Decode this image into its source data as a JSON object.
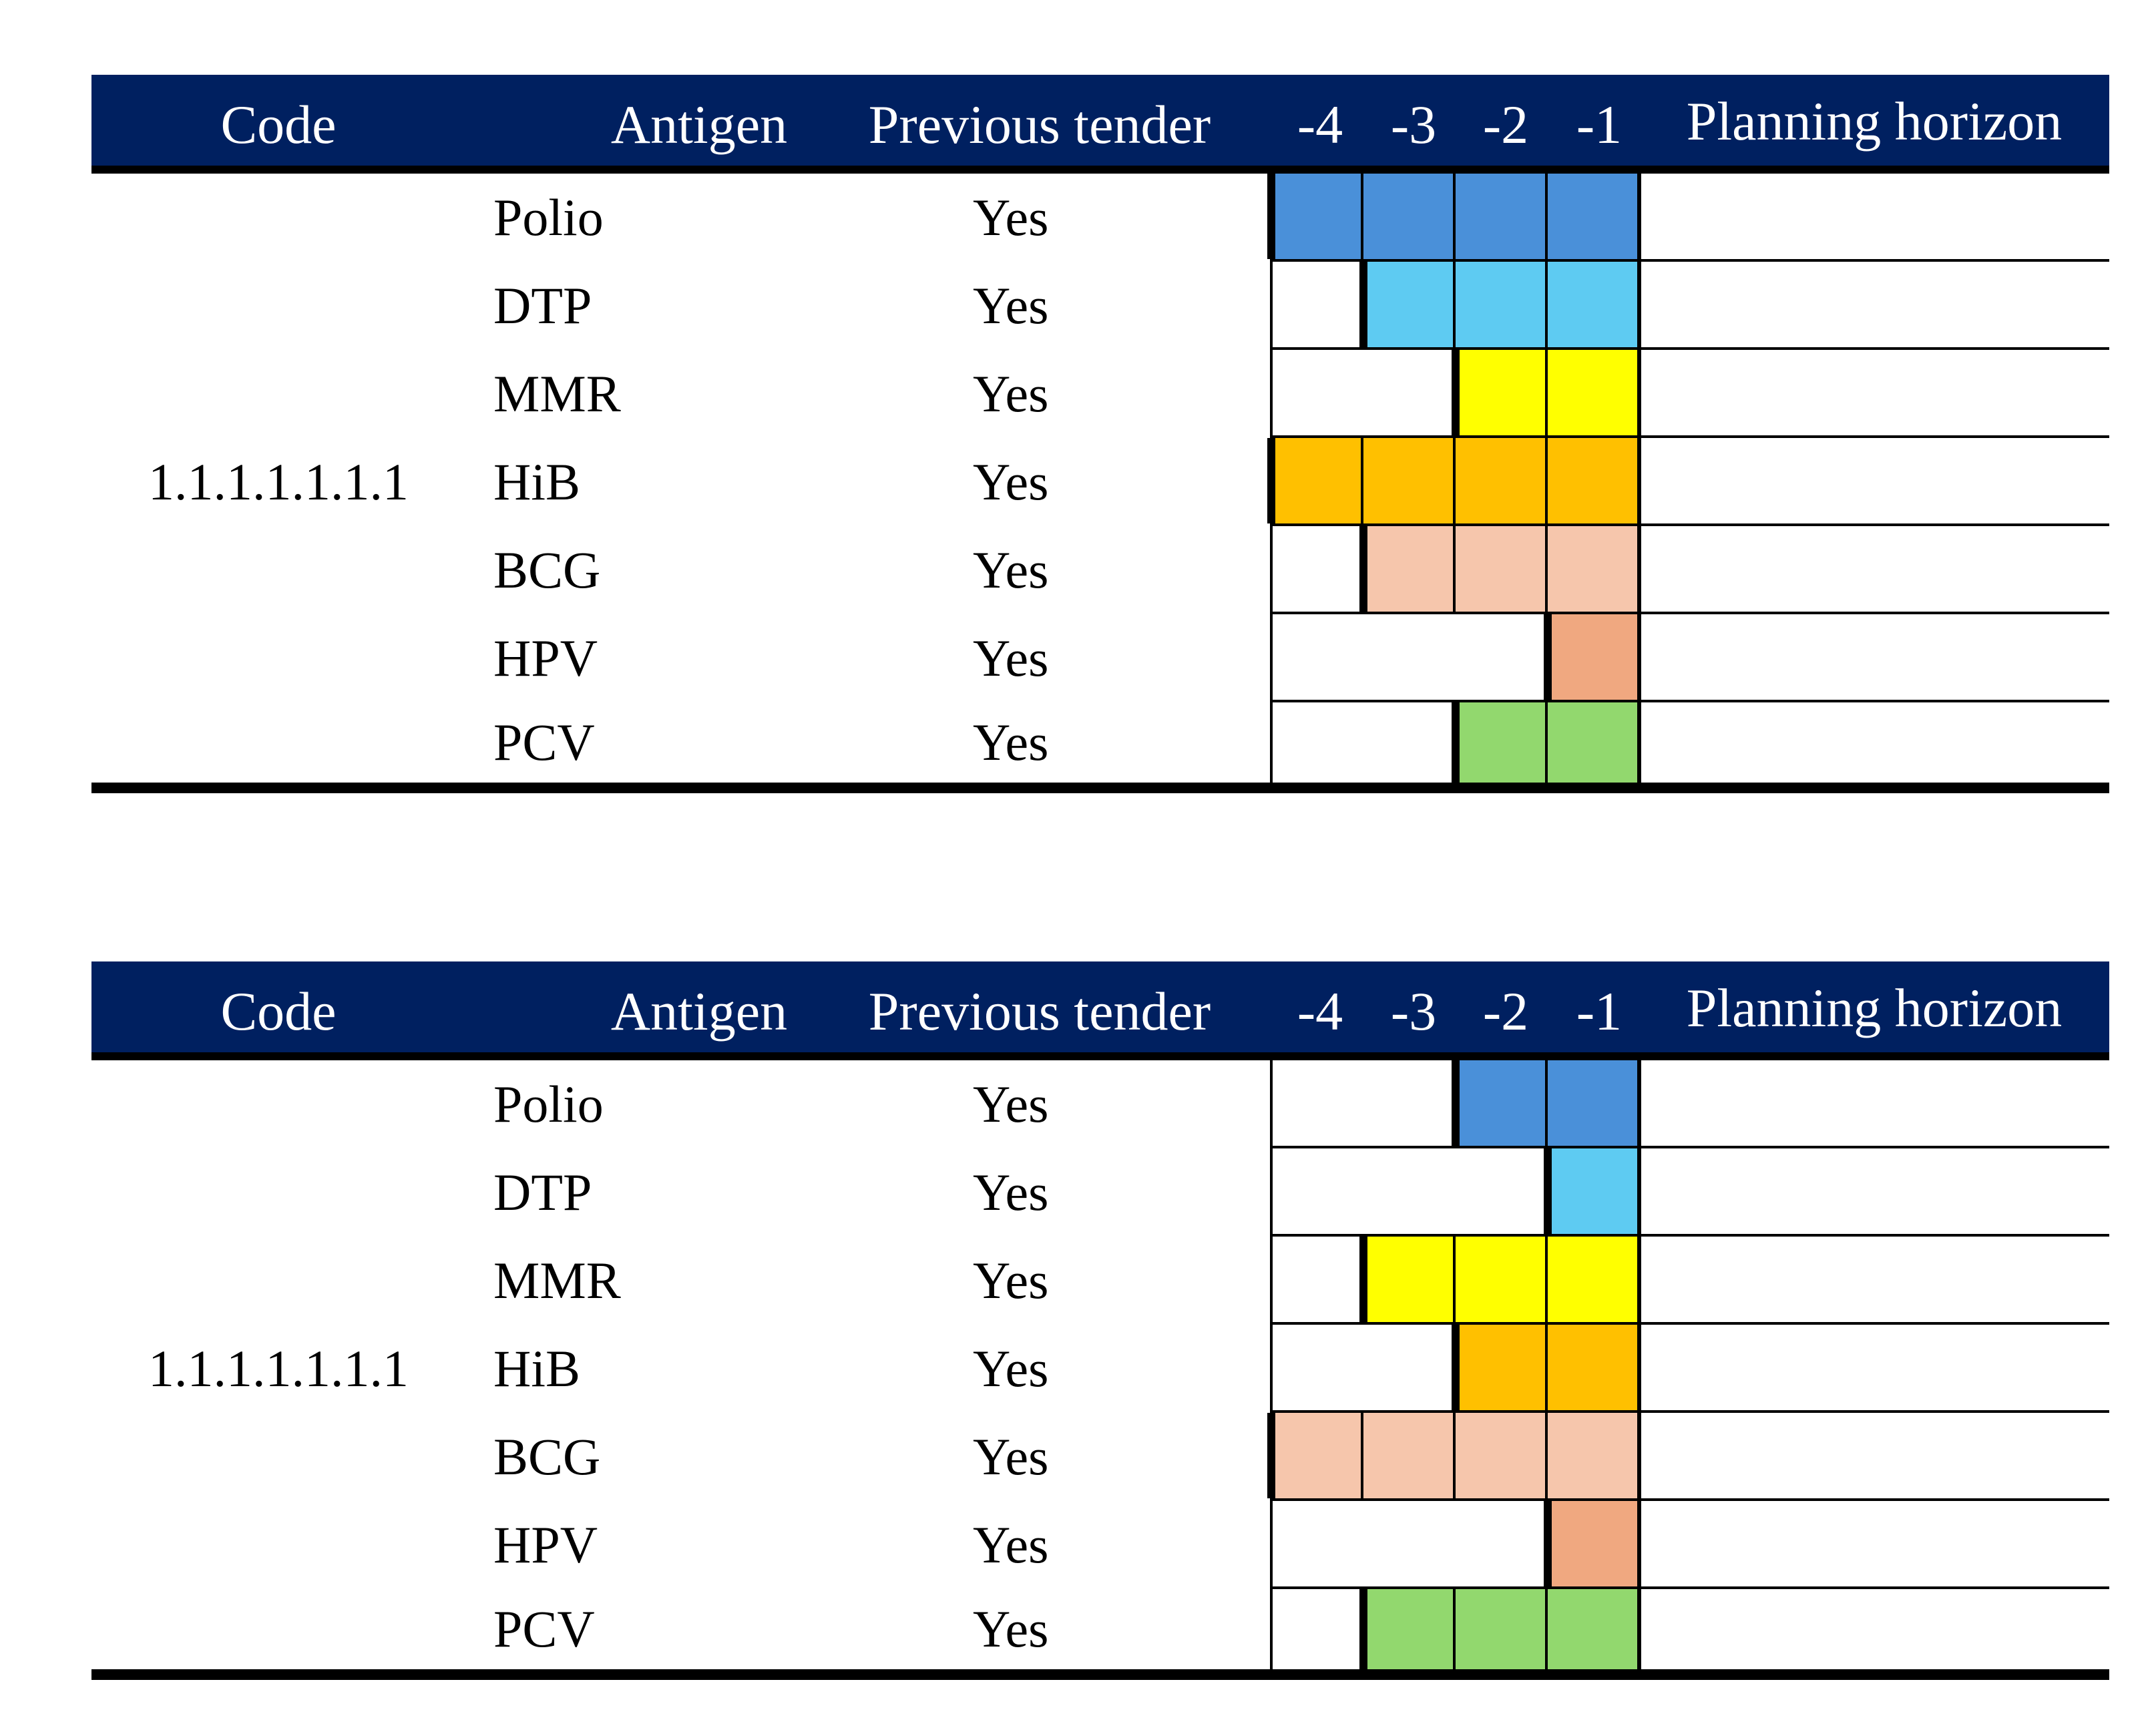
{
  "columns": {
    "code": "Code",
    "antigen": "Antigen",
    "previous_tender": "Previous tender",
    "periods": [
      "-4",
      "-3",
      "-2",
      "-1"
    ],
    "planning_horizon": "Planning horizon"
  },
  "antigen_colors": {
    "Polio": "#4a90d9",
    "DTP": "#5ecbf2",
    "MMR": "#ffff00",
    "HiB": "#ffc000",
    "BCG": "#f6c6ac",
    "HPV": "#f0a880",
    "PCV": "#92d86e"
  },
  "panels": [
    {
      "code": "1.1.1.1.1.1.1",
      "rows": [
        {
          "antigen": "Polio",
          "previous_tender": "Yes",
          "start_period": "-4"
        },
        {
          "antigen": "DTP",
          "previous_tender": "Yes",
          "start_period": "-3"
        },
        {
          "antigen": "MMR",
          "previous_tender": "Yes",
          "start_period": "-2"
        },
        {
          "antigen": "HiB",
          "previous_tender": "Yes",
          "start_period": "-4"
        },
        {
          "antigen": "BCG",
          "previous_tender": "Yes",
          "start_period": "-3"
        },
        {
          "antigen": "HPV",
          "previous_tender": "Yes",
          "start_period": "-1"
        },
        {
          "antigen": "PCV",
          "previous_tender": "Yes",
          "start_period": "-2"
        }
      ]
    },
    {
      "code": "1.1.1.1.1.1.1",
      "rows": [
        {
          "antigen": "Polio",
          "previous_tender": "Yes",
          "start_period": "-2"
        },
        {
          "antigen": "DTP",
          "previous_tender": "Yes",
          "start_period": "-1"
        },
        {
          "antigen": "MMR",
          "previous_tender": "Yes",
          "start_period": "-3"
        },
        {
          "antigen": "HiB",
          "previous_tender": "Yes",
          "start_period": "-2"
        },
        {
          "antigen": "BCG",
          "previous_tender": "Yes",
          "start_period": "-4"
        },
        {
          "antigen": "HPV",
          "previous_tender": "Yes",
          "start_period": "-1"
        },
        {
          "antigen": "PCV",
          "previous_tender": "Yes",
          "start_period": "-3"
        }
      ]
    }
  ]
}
